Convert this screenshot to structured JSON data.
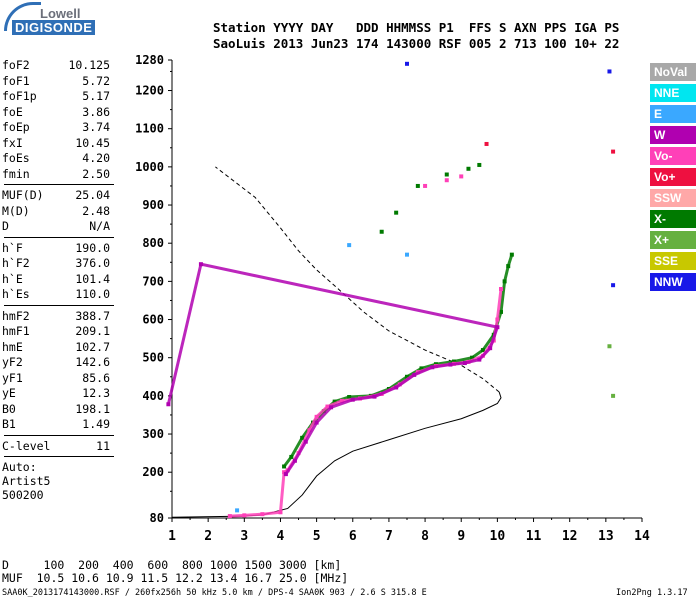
{
  "logo": {
    "top": "Lowell",
    "bottom": "DIGISONDE"
  },
  "header": {
    "line1": "Station YYYY DAY   DDD HHMMSS P1  FFS S AXN PPS IGA PS",
    "line2": "SaoLuis 2013 Jun23 174 143000 RSF 005 2 713 100 10+ 22"
  },
  "params": [
    [
      "foF2",
      "10.125"
    ],
    [
      "foF1",
      "5.72"
    ],
    [
      "foF1p",
      "5.17"
    ],
    [
      "foE",
      "3.86"
    ],
    [
      "foEp",
      "3.74"
    ],
    [
      "fxI",
      "10.45"
    ],
    [
      "foEs",
      "4.20"
    ],
    [
      "fmin",
      "2.50"
    ]
  ],
  "params2": [
    [
      "MUF(D)",
      "25.04"
    ],
    [
      "M(D)",
      "2.48"
    ],
    [
      "D",
      "N/A"
    ]
  ],
  "params3": [
    [
      "h`F",
      "190.0"
    ],
    [
      "h`F2",
      "376.0"
    ],
    [
      "h`E",
      "101.4"
    ],
    [
      "h`Es",
      "110.0"
    ]
  ],
  "params4": [
    [
      "hmF2",
      "388.7"
    ],
    [
      "hmF1",
      "209.1"
    ],
    [
      "hmE",
      "102.7"
    ],
    [
      "yF2",
      "142.6"
    ],
    [
      "yF1",
      "85.6"
    ],
    [
      "yE",
      "12.3"
    ],
    [
      "B0",
      "198.1"
    ],
    [
      "B1",
      "1.49"
    ]
  ],
  "params5": [
    [
      "C-level",
      "11"
    ]
  ],
  "auto": {
    "line1": "Auto:",
    "line2": "Artist5",
    "line3": "500200"
  },
  "legend": [
    {
      "label": "NoVal",
      "color": "#a8a8a8"
    },
    {
      "label": "NNE",
      "color": "#00e6f0"
    },
    {
      "label": "E",
      "color": "#3aa8ff"
    },
    {
      "label": "W",
      "color": "#b000b0"
    },
    {
      "label": "Vo-",
      "color": "#ff40b8"
    },
    {
      "label": "Vo+",
      "color": "#ee1040"
    },
    {
      "label": "SSW",
      "color": "#ffa8a8"
    },
    {
      "label": "X-",
      "color": "#007a00"
    },
    {
      "label": "X+",
      "color": "#66b040"
    },
    {
      "label": "SSE",
      "color": "#c8c800"
    },
    {
      "label": "NNW",
      "color": "#1818e8"
    }
  ],
  "footer": {
    "line1": "D     100  200  400  600  800 1000 1500 3000 [km]",
    "line2": "MUF  10.5 10.6 10.9 11.5 12.2 13.4 16.7 25.0 [MHz]",
    "line3": "SAA0K_2013174143000.RSF / 260fx256h 50 kHz 5.0 km / DPS-4 SAA0K 903 / 2.6 S 315.8 E",
    "version": "Ion2Png 1.3.17"
  },
  "chart_data": {
    "type": "scatter",
    "xlim": [
      1,
      14
    ],
    "ylim": [
      80,
      1280
    ],
    "x_ticks": [
      "1",
      "2",
      "3",
      "4",
      "5",
      "6",
      "7",
      "8",
      "9",
      "10",
      "11",
      "12",
      "13",
      "14"
    ],
    "y_ticks": [
      "80",
      "200",
      "300",
      "400",
      "500",
      "600",
      "700",
      "800",
      "900",
      "1000",
      "1100",
      "1200",
      "1280"
    ],
    "series": [
      {
        "name": "X-",
        "color": "#007a00",
        "points": [
          [
            4.1,
            215
          ],
          [
            4.3,
            240
          ],
          [
            4.6,
            290
          ],
          [
            4.9,
            330
          ],
          [
            5.2,
            360
          ],
          [
            5.5,
            385
          ],
          [
            5.9,
            397
          ],
          [
            6.5,
            400
          ],
          [
            7.0,
            418
          ],
          [
            7.5,
            450
          ],
          [
            7.9,
            472
          ],
          [
            8.3,
            483
          ],
          [
            8.8,
            490
          ],
          [
            9.3,
            500
          ],
          [
            9.6,
            520
          ],
          [
            9.9,
            560
          ],
          [
            10.1,
            620
          ],
          [
            10.2,
            700
          ],
          [
            10.3,
            740
          ],
          [
            10.4,
            770
          ],
          [
            6.8,
            830
          ],
          [
            7.2,
            880
          ],
          [
            7.8,
            950
          ],
          [
            8.6,
            980
          ],
          [
            9.2,
            995
          ],
          [
            9.5,
            1005
          ]
        ]
      },
      {
        "name": "Vo-",
        "color": "#ff40b8",
        "points": [
          [
            2.6,
            85
          ],
          [
            3.0,
            87
          ],
          [
            3.5,
            90
          ],
          [
            4.0,
            95
          ],
          [
            4.1,
            200
          ],
          [
            4.2,
            205
          ],
          [
            4.5,
            250
          ],
          [
            4.8,
            310
          ],
          [
            5.0,
            345
          ],
          [
            5.3,
            372
          ],
          [
            5.7,
            387
          ],
          [
            6.2,
            393
          ],
          [
            6.8,
            405
          ],
          [
            7.3,
            430
          ],
          [
            7.8,
            462
          ],
          [
            8.3,
            478
          ],
          [
            8.8,
            484
          ],
          [
            9.2,
            489
          ],
          [
            9.6,
            505
          ],
          [
            9.9,
            545
          ],
          [
            10.0,
            600
          ],
          [
            10.1,
            680
          ],
          [
            8.0,
            950
          ],
          [
            8.6,
            965
          ],
          [
            9.0,
            975
          ]
        ]
      },
      {
        "name": "W",
        "color": "#b000b0",
        "points": [
          [
            4.15,
            195
          ],
          [
            4.4,
            230
          ],
          [
            4.7,
            280
          ],
          [
            5.0,
            330
          ],
          [
            5.4,
            370
          ],
          [
            6.0,
            390
          ],
          [
            6.6,
            398
          ],
          [
            7.2,
            422
          ],
          [
            7.7,
            455
          ],
          [
            8.2,
            475
          ],
          [
            8.7,
            482
          ],
          [
            9.1,
            486
          ],
          [
            9.5,
            495
          ],
          [
            9.8,
            525
          ],
          [
            10.0,
            580
          ],
          [
            1.8,
            745
          ],
          [
            0.9,
            378
          ]
        ]
      },
      {
        "name": "E",
        "color": "#3aa8ff",
        "points": [
          [
            5.9,
            795
          ],
          [
            7.5,
            770
          ],
          [
            2.8,
            100
          ]
        ]
      },
      {
        "name": "Vo+",
        "color": "#ee1040",
        "points": [
          [
            9.7,
            1060
          ],
          [
            13.2,
            1040
          ]
        ]
      },
      {
        "name": "X+",
        "color": "#66b040",
        "points": [
          [
            13.1,
            530
          ],
          [
            13.2,
            400
          ]
        ]
      },
      {
        "name": "NNW",
        "color": "#1818e8",
        "points": [
          [
            13.2,
            690
          ],
          [
            7.5,
            1270
          ],
          [
            13.1,
            1250
          ]
        ]
      }
    ],
    "lines": [
      {
        "name": "true-height profile",
        "style": "solid",
        "points": [
          [
            1,
            82
          ],
          [
            3,
            85
          ],
          [
            3.5,
            88
          ],
          [
            4.2,
            105
          ],
          [
            4.6,
            140
          ],
          [
            5.0,
            190
          ],
          [
            5.5,
            230
          ],
          [
            6.0,
            255
          ],
          [
            7.0,
            285
          ],
          [
            8.0,
            315
          ],
          [
            9.0,
            340
          ],
          [
            9.6,
            362
          ],
          [
            10.0,
            380
          ],
          [
            10.1,
            395
          ],
          [
            10.05,
            410
          ],
          [
            9.6,
            445
          ],
          [
            9.0,
            480
          ],
          [
            8.5,
            500
          ],
          [
            8.0,
            520
          ],
          [
            7.0,
            570
          ],
          [
            6.3,
            620
          ],
          [
            5.6,
            680
          ],
          [
            5.0,
            730
          ],
          [
            4.5,
            780
          ],
          [
            4.0,
            840
          ],
          [
            3.3,
            920
          ],
          [
            2.2,
            1000
          ]
        ]
      }
    ]
  }
}
